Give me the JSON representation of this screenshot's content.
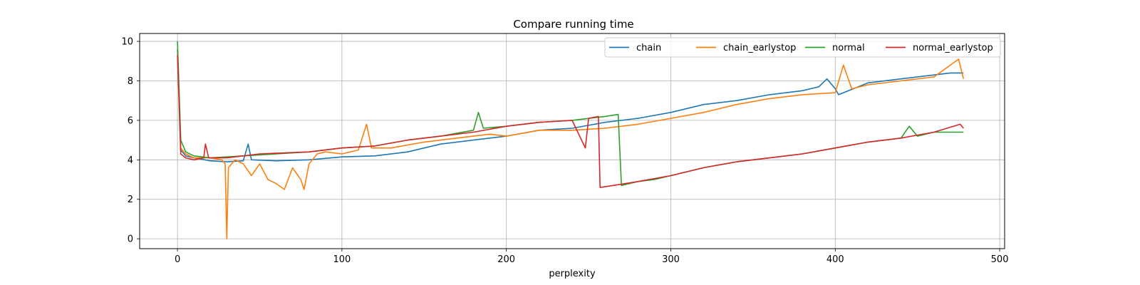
{
  "chart_data": {
    "type": "line",
    "title": "Compare running time",
    "xlabel": "perplexity",
    "ylabel": "",
    "xlim": [
      -23,
      503
    ],
    "ylim": [
      -0.5,
      10.4
    ],
    "xticks": [
      0,
      100,
      200,
      300,
      400,
      500
    ],
    "yticks": [
      0,
      2,
      4,
      6,
      8,
      10
    ],
    "grid": true,
    "legend_position": "top-right",
    "series": [
      {
        "name": "chain",
        "color": "#1f77b4",
        "points": [
          [
            0,
            9.6
          ],
          [
            2,
            4.5
          ],
          [
            5,
            4.2
          ],
          [
            10,
            4.1
          ],
          [
            20,
            3.95
          ],
          [
            30,
            3.9
          ],
          [
            40,
            3.95
          ],
          [
            43,
            4.8
          ],
          [
            45,
            4.0
          ],
          [
            60,
            3.95
          ],
          [
            80,
            4.0
          ],
          [
            100,
            4.15
          ],
          [
            120,
            4.2
          ],
          [
            140,
            4.4
          ],
          [
            160,
            4.8
          ],
          [
            180,
            5.0
          ],
          [
            200,
            5.2
          ],
          [
            220,
            5.5
          ],
          [
            240,
            5.6
          ],
          [
            260,
            5.9
          ],
          [
            280,
            6.1
          ],
          [
            300,
            6.4
          ],
          [
            320,
            6.8
          ],
          [
            340,
            7.0
          ],
          [
            360,
            7.3
          ],
          [
            380,
            7.5
          ],
          [
            390,
            7.7
          ],
          [
            395,
            8.1
          ],
          [
            400,
            7.6
          ],
          [
            402,
            7.3
          ],
          [
            420,
            7.9
          ],
          [
            440,
            8.1
          ],
          [
            460,
            8.3
          ],
          [
            470,
            8.4
          ],
          [
            478,
            8.4
          ]
        ]
      },
      {
        "name": "chain_earlystop",
        "color": "#ff7f0e",
        "points": [
          [
            0,
            9.4
          ],
          [
            2,
            4.6
          ],
          [
            5,
            4.3
          ],
          [
            10,
            4.1
          ],
          [
            20,
            4.1
          ],
          [
            27,
            4.0
          ],
          [
            29,
            3.8
          ],
          [
            30,
            0.0
          ],
          [
            31,
            3.6
          ],
          [
            35,
            4.0
          ],
          [
            40,
            3.8
          ],
          [
            45,
            3.2
          ],
          [
            50,
            3.8
          ],
          [
            55,
            3.0
          ],
          [
            60,
            2.8
          ],
          [
            65,
            2.5
          ],
          [
            70,
            3.6
          ],
          [
            75,
            3.0
          ],
          [
            77,
            2.5
          ],
          [
            80,
            3.8
          ],
          [
            85,
            4.3
          ],
          [
            90,
            4.4
          ],
          [
            100,
            4.3
          ],
          [
            110,
            4.5
          ],
          [
            115,
            5.8
          ],
          [
            118,
            4.6
          ],
          [
            130,
            4.6
          ],
          [
            150,
            4.9
          ],
          [
            170,
            5.1
          ],
          [
            190,
            5.3
          ],
          [
            200,
            5.2
          ],
          [
            220,
            5.5
          ],
          [
            240,
            5.5
          ],
          [
            260,
            5.6
          ],
          [
            280,
            5.8
          ],
          [
            300,
            6.1
          ],
          [
            320,
            6.4
          ],
          [
            340,
            6.8
          ],
          [
            360,
            7.1
          ],
          [
            380,
            7.3
          ],
          [
            400,
            7.4
          ],
          [
            405,
            8.8
          ],
          [
            410,
            7.6
          ],
          [
            420,
            7.8
          ],
          [
            440,
            8.0
          ],
          [
            460,
            8.2
          ],
          [
            475,
            9.1
          ],
          [
            478,
            8.1
          ]
        ]
      },
      {
        "name": "normal",
        "color": "#2ca02c",
        "points": [
          [
            0,
            10.0
          ],
          [
            2,
            5.0
          ],
          [
            5,
            4.4
          ],
          [
            10,
            4.2
          ],
          [
            20,
            4.1
          ],
          [
            40,
            4.2
          ],
          [
            60,
            4.3
          ],
          [
            80,
            4.4
          ],
          [
            100,
            4.6
          ],
          [
            120,
            4.7
          ],
          [
            140,
            5.0
          ],
          [
            160,
            5.2
          ],
          [
            180,
            5.5
          ],
          [
            183,
            6.4
          ],
          [
            186,
            5.6
          ],
          [
            200,
            5.7
          ],
          [
            220,
            5.9
          ],
          [
            240,
            6.0
          ],
          [
            260,
            6.2
          ],
          [
            268,
            6.3
          ],
          [
            270,
            2.7
          ],
          [
            280,
            2.9
          ],
          [
            290,
            3.0
          ],
          [
            300,
            3.2
          ],
          [
            320,
            3.6
          ],
          [
            340,
            3.9
          ],
          [
            360,
            4.1
          ],
          [
            380,
            4.3
          ],
          [
            400,
            4.6
          ],
          [
            420,
            4.9
          ],
          [
            440,
            5.1
          ],
          [
            445,
            5.7
          ],
          [
            450,
            5.2
          ],
          [
            460,
            5.4
          ],
          [
            478,
            5.4
          ]
        ]
      },
      {
        "name": "normal_earlystop",
        "color": "#d62728",
        "points": [
          [
            0,
            9.3
          ],
          [
            2,
            4.3
          ],
          [
            5,
            4.1
          ],
          [
            10,
            4.0
          ],
          [
            16,
            4.1
          ],
          [
            17,
            4.8
          ],
          [
            19,
            4.1
          ],
          [
            30,
            4.1
          ],
          [
            50,
            4.3
          ],
          [
            80,
            4.4
          ],
          [
            100,
            4.6
          ],
          [
            120,
            4.7
          ],
          [
            140,
            5.0
          ],
          [
            160,
            5.2
          ],
          [
            180,
            5.4
          ],
          [
            200,
            5.7
          ],
          [
            220,
            5.9
          ],
          [
            240,
            6.0
          ],
          [
            248,
            4.6
          ],
          [
            250,
            6.1
          ],
          [
            256,
            6.2
          ],
          [
            257,
            2.6
          ],
          [
            265,
            2.7
          ],
          [
            280,
            2.9
          ],
          [
            300,
            3.2
          ],
          [
            320,
            3.6
          ],
          [
            340,
            3.9
          ],
          [
            360,
            4.1
          ],
          [
            380,
            4.3
          ],
          [
            400,
            4.6
          ],
          [
            420,
            4.9
          ],
          [
            440,
            5.1
          ],
          [
            460,
            5.4
          ],
          [
            476,
            5.8
          ],
          [
            478,
            5.6
          ]
        ]
      }
    ]
  }
}
